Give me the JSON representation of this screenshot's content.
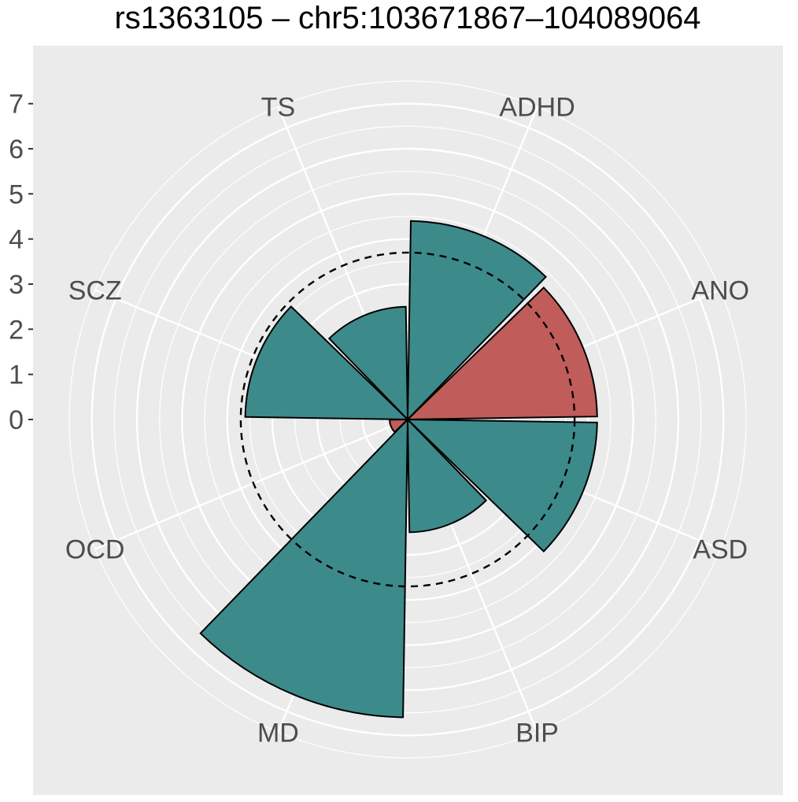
{
  "chart_data": {
    "type": "bar",
    "projection": "polar",
    "title": "rs1363105 – chr5:103671867–104089064",
    "categories": [
      "ADHD",
      "ANO",
      "ASD",
      "BIP",
      "MD",
      "OCD",
      "SCZ",
      "TS"
    ],
    "values": [
      4.4,
      4.2,
      4.2,
      2.5,
      6.6,
      0.4,
      3.6,
      2.5
    ],
    "bar_colors": [
      "#3d8a8b",
      "#c05c5a",
      "#3d8a8b",
      "#3d8a8b",
      "#3d8a8b",
      "#c05c5a",
      "#3d8a8b",
      "#3d8a8b"
    ],
    "y_ticks": [
      0,
      1,
      2,
      3,
      4,
      5,
      6,
      7
    ],
    "ylim": [
      0,
      7.5
    ],
    "reference_line": 3.7,
    "grid": true,
    "panel_background": "#ebebeb",
    "xlabel": "",
    "ylabel": ""
  }
}
